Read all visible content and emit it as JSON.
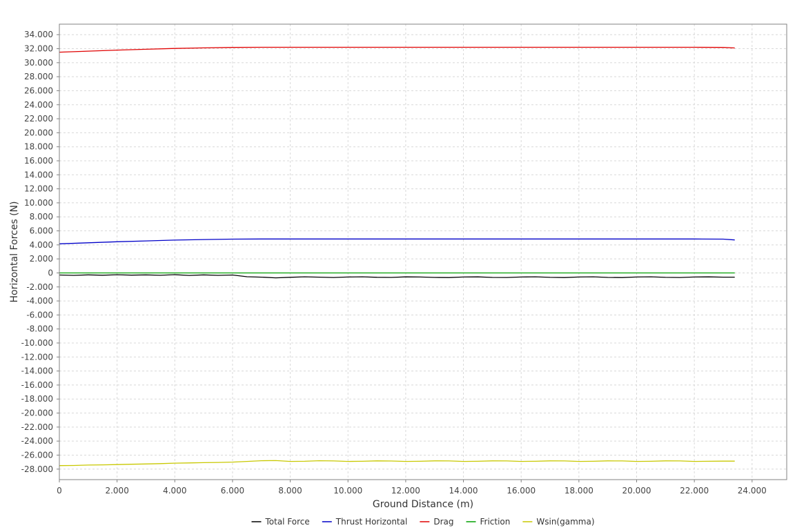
{
  "chart_data": {
    "type": "line",
    "title": "",
    "xlabel": "Ground Distance (m)",
    "ylabel": "Horizontal Forces (N)",
    "xlim": [
      0,
      25200
    ],
    "ylim": [
      -29500,
      35500
    ],
    "x_ticks": [
      0,
      2000,
      4000,
      6000,
      8000,
      10000,
      12000,
      14000,
      16000,
      18000,
      20000,
      22000,
      24000
    ],
    "x_tick_labels": [
      "0",
      "2.000",
      "4.000",
      "6.000",
      "8.000",
      "10.000",
      "12.000",
      "14.000",
      "16.000",
      "18.000",
      "20.000",
      "22.000",
      "24.000"
    ],
    "y_ticks": [
      34000,
      32000,
      30000,
      28000,
      26000,
      24000,
      22000,
      20000,
      18000,
      16000,
      14000,
      12000,
      10000,
      8000,
      6000,
      4000,
      2000,
      0,
      -2000,
      -4000,
      -6000,
      -8000,
      -10000,
      -12000,
      -14000,
      -16000,
      -18000,
      -20000,
      -22000,
      -24000,
      -26000,
      -28000
    ],
    "y_tick_labels": [
      "34.000",
      "32.000",
      "30.000",
      "28.000",
      "26.000",
      "24.000",
      "22.000",
      "20.000",
      "18.000",
      "16.000",
      "14.000",
      "12.000",
      "10.000",
      "8.000",
      "6.000",
      "4.000",
      "2.000",
      "0",
      "-2.000",
      "-4.000",
      "-6.000",
      "-8.000",
      "-10.000",
      "-12.000",
      "-14.000",
      "-16.000",
      "-18.000",
      "-20.000",
      "-22.000",
      "-24.000",
      "-26.000",
      "-28.000"
    ],
    "grid": true,
    "legend_position": "bottom-center",
    "series": [
      {
        "name": "Total Force",
        "color": "#000000",
        "x": [
          0,
          500,
          1000,
          1500,
          2000,
          2500,
          3000,
          3500,
          4000,
          4500,
          5000,
          5500,
          6000,
          6500,
          7000,
          7500,
          8000,
          8500,
          9000,
          9500,
          10000,
          10500,
          11000,
          11500,
          12000,
          12500,
          13000,
          13500,
          14000,
          14500,
          15000,
          15500,
          16000,
          16500,
          17000,
          17500,
          18000,
          18500,
          19000,
          19500,
          20000,
          20500,
          21000,
          21500,
          22000,
          22500,
          23000,
          23400
        ],
        "y": [
          -300,
          -350,
          -280,
          -330,
          -260,
          -320,
          -280,
          -340,
          -250,
          -360,
          -280,
          -350,
          -300,
          -550,
          -600,
          -700,
          -620,
          -560,
          -600,
          -650,
          -580,
          -560,
          -620,
          -640,
          -570,
          -580,
          -640,
          -660,
          -580,
          -570,
          -640,
          -650,
          -580,
          -560,
          -630,
          -660,
          -580,
          -560,
          -640,
          -660,
          -580,
          -560,
          -630,
          -650,
          -580,
          -570,
          -600,
          -600
        ]
      },
      {
        "name": "Thrust Horizontal",
        "color": "#0000c8",
        "x": [
          0,
          1000,
          2000,
          3000,
          4000,
          5000,
          6000,
          7000,
          8000,
          10000,
          12000,
          14000,
          16000,
          18000,
          20000,
          22000,
          23000,
          23400
        ],
        "y": [
          4150,
          4300,
          4450,
          4570,
          4680,
          4760,
          4820,
          4840,
          4840,
          4840,
          4840,
          4840,
          4840,
          4840,
          4840,
          4840,
          4820,
          4700
        ]
      },
      {
        "name": "Drag",
        "color": "#e00000",
        "x": [
          0,
          1000,
          2000,
          3000,
          4000,
          5000,
          6000,
          7000,
          8000,
          10000,
          12000,
          14000,
          16000,
          18000,
          20000,
          22000,
          23000,
          23400
        ],
        "y": [
          31500,
          31650,
          31800,
          31920,
          32030,
          32110,
          32180,
          32200,
          32200,
          32200,
          32200,
          32200,
          32200,
          32200,
          32200,
          32200,
          32180,
          32100
        ]
      },
      {
        "name": "Friction",
        "color": "#00a000",
        "x": [
          0,
          23400
        ],
        "y": [
          0,
          0
        ]
      },
      {
        "name": "Wsin(gamma)",
        "color": "#c8c800",
        "x": [
          0,
          500,
          1000,
          1500,
          2000,
          2500,
          3000,
          3500,
          4000,
          4500,
          5000,
          5500,
          6000,
          6500,
          7000,
          7500,
          8000,
          8500,
          9000,
          9500,
          10000,
          10500,
          11000,
          11500,
          12000,
          12500,
          13000,
          13500,
          14000,
          14500,
          15000,
          15500,
          16000,
          16500,
          17000,
          17500,
          18000,
          18500,
          19000,
          19500,
          20000,
          20500,
          21000,
          21500,
          22000,
          22500,
          23000,
          23400
        ],
        "y": [
          -27500,
          -27480,
          -27420,
          -27390,
          -27350,
          -27300,
          -27260,
          -27220,
          -27150,
          -27120,
          -27080,
          -27050,
          -27000,
          -26900,
          -26800,
          -26780,
          -26900,
          -26880,
          -26800,
          -26830,
          -26900,
          -26880,
          -26820,
          -26840,
          -26900,
          -26880,
          -26820,
          -26830,
          -26900,
          -26880,
          -26820,
          -26830,
          -26900,
          -26880,
          -26820,
          -26830,
          -26900,
          -26880,
          -26820,
          -26830,
          -26900,
          -26880,
          -26820,
          -26830,
          -26900,
          -26880,
          -26860,
          -26860
        ]
      }
    ]
  }
}
